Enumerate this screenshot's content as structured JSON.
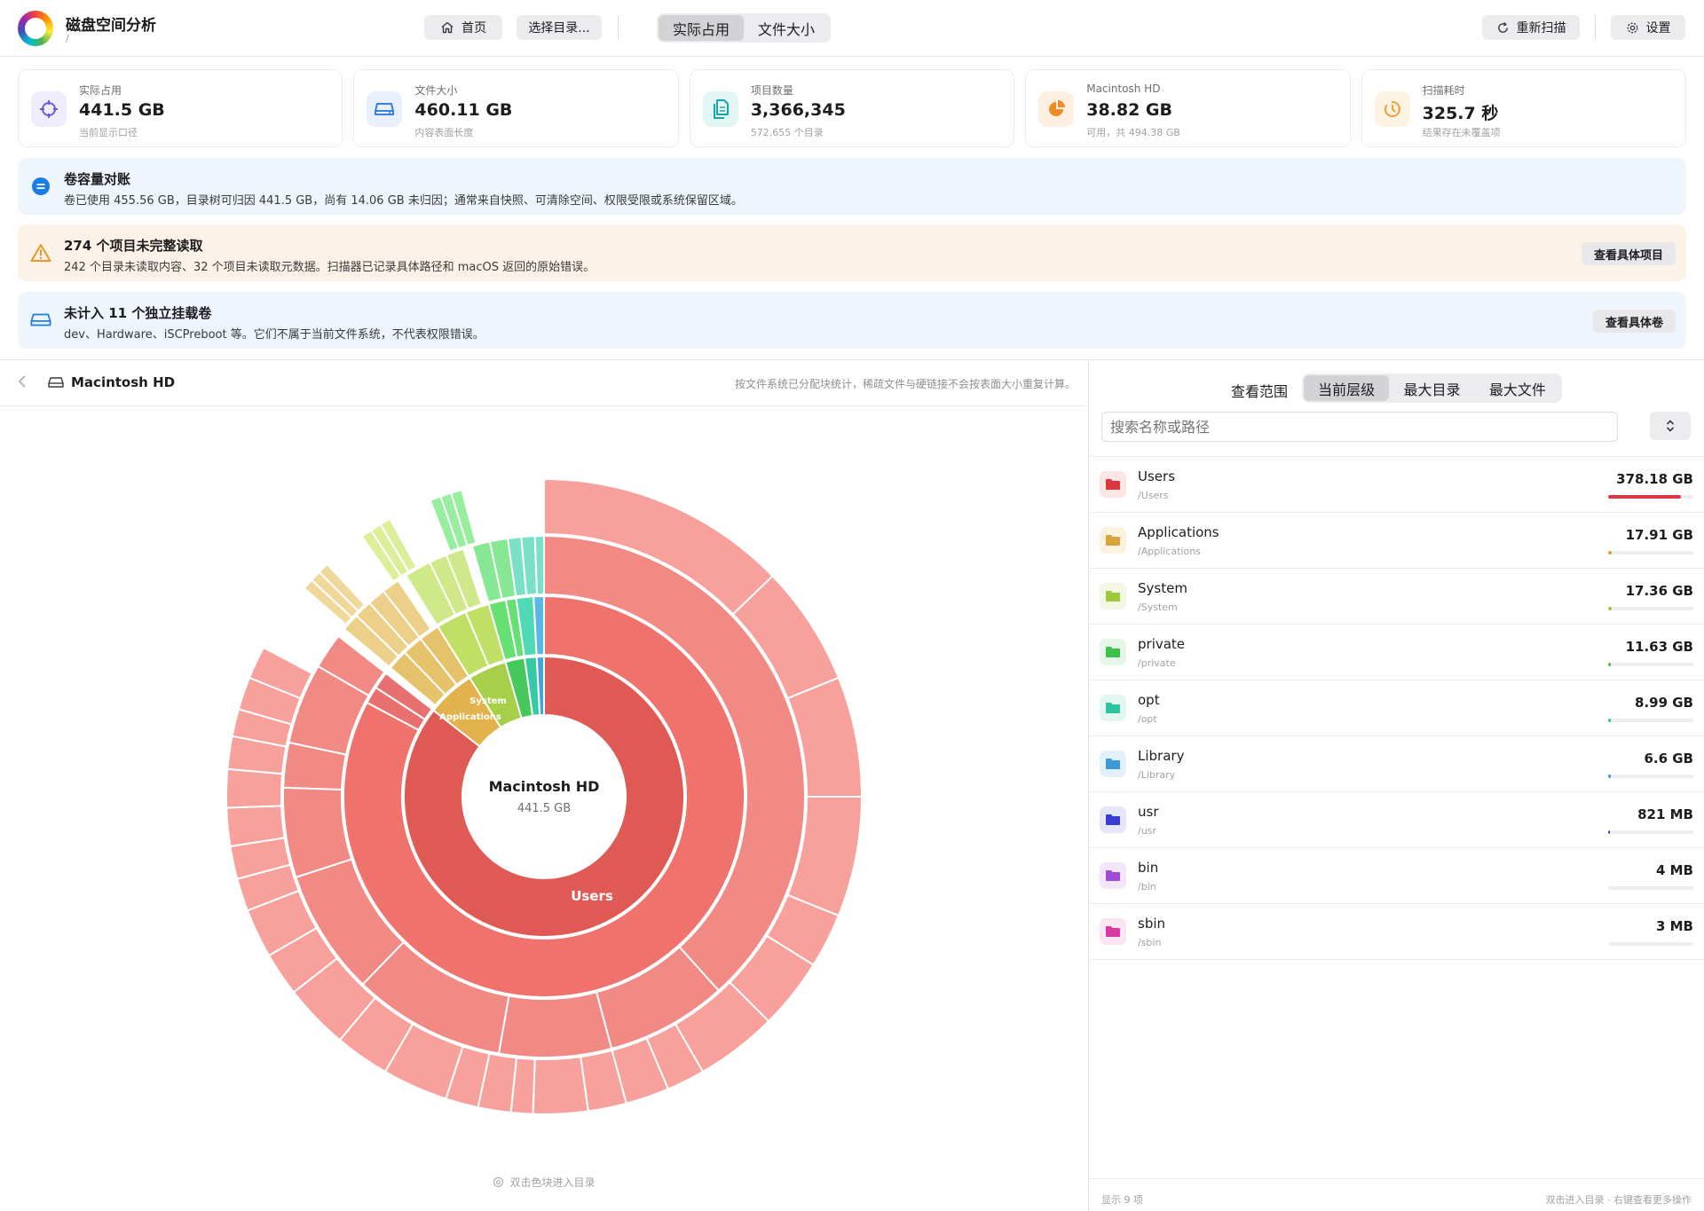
{
  "app": {
    "title": "磁盘空间分析",
    "path": "/"
  },
  "toolbar": {
    "home_label": "首页",
    "choose_dir_label": "选择目录...",
    "view_modes": [
      "实际占用",
      "文件大小"
    ],
    "rescan_label": "重新扫描",
    "settings_label": "设置"
  },
  "stats": [
    {
      "label": "实际占用",
      "value": "441.5 GB",
      "sub": "当前显示口径",
      "icon": "crosshair-icon",
      "color": "#6b5bd6",
      "bg": "#efedfb"
    },
    {
      "label": "文件大小",
      "value": "460.11 GB",
      "sub": "内容表面长度",
      "icon": "drive-icon",
      "color": "#3b7de0",
      "bg": "#e7f0fc"
    },
    {
      "label": "项目数量",
      "value": "3,366,345",
      "sub": "572,655 个目录",
      "icon": "files-icon",
      "color": "#18a5a5",
      "bg": "#e3f6f6"
    },
    {
      "label": "Macintosh HD",
      "value": "38.82 GB",
      "sub": "可用，共 494.38 GB",
      "icon": "pie-icon",
      "color": "#f08a24",
      "bg": "#fdf0e3"
    },
    {
      "label": "扫描耗时",
      "value": "325.7 秒",
      "sub": "结果存在未覆盖项",
      "icon": "timer-icon",
      "color": "#f0a030",
      "bg": "#fdf3e3"
    }
  ],
  "banners": {
    "volume": {
      "title": "卷容量对账",
      "text": "卷已使用 455.56 GB，目录树可归因 441.5 GB，尚有 14.06 GB 未归因；通常来自快照、可清除空间、权限受限或系统保留区域。",
      "bg": "#eef5fd"
    },
    "incomplete": {
      "title": "274 个项目未完整读取",
      "text": "242 个目录未读取内容、32 个项目未读取元数据。扫描器已记录具体路径和 macOS 返回的原始错误。",
      "button": "查看具体项目",
      "bg": "#fdf2e7"
    },
    "mounts": {
      "title": "未计入 11 个独立挂载卷",
      "text": "dev、Hardware、iSCPreboot 等。它们不属于当前文件系统，不代表权限错误。",
      "button": "查看具体卷",
      "bg": "#eef5fd"
    }
  },
  "breadcrumb": {
    "drive": "Macintosh HD",
    "note": "按文件系统已分配块统计，稀疏文件与硬链接不会按表面大小重复计算。"
  },
  "sunburst": {
    "center_title": "Macintosh HD",
    "center_value": "441.5 GB",
    "labels": {
      "users": "Users",
      "system": "System",
      "applications": "Applications"
    }
  },
  "hint": "双击色块进入目录",
  "right": {
    "scope_label": "查看范围",
    "scope_tabs": [
      "当前层级",
      "最大目录",
      "最大文件"
    ],
    "search_placeholder": "搜索名称或路径",
    "items": [
      {
        "name": "Users",
        "path": "/Users",
        "size": "378.18 GB",
        "fraction": 0.857,
        "color": "#d9393d",
        "bg": "#fbe5e5"
      },
      {
        "name": "Applications",
        "path": "/Applications",
        "size": "17.91 GB",
        "fraction": 0.041,
        "color": "#d9a43c",
        "bg": "#fbf2e0"
      },
      {
        "name": "System",
        "path": "/System",
        "size": "17.36 GB",
        "fraction": 0.039,
        "color": "#9cc93a",
        "bg": "#f2f8e3"
      },
      {
        "name": "private",
        "path": "/private",
        "size": "11.63 GB",
        "fraction": 0.026,
        "color": "#3fc04a",
        "bg": "#e5f7e6"
      },
      {
        "name": "opt",
        "path": "/opt",
        "size": "8.99 GB",
        "fraction": 0.02,
        "color": "#2fc4a0",
        "bg": "#e2f7f1"
      },
      {
        "name": "Library",
        "path": "/Library",
        "size": "6.6 GB",
        "fraction": 0.015,
        "color": "#3b9ad6",
        "bg": "#e3f1fa"
      },
      {
        "name": "usr",
        "path": "/usr",
        "size": "821 MB",
        "fraction": 0.002,
        "color": "#3a3ed0",
        "bg": "#e6e6fa"
      },
      {
        "name": "bin",
        "path": "/bin",
        "size": "4 MB",
        "fraction": 0.0,
        "color": "#a04ad6",
        "bg": "#f3e6fa"
      },
      {
        "name": "sbin",
        "path": "/sbin",
        "size": "3 MB",
        "fraction": 0.0,
        "color": "#d63aa0",
        "bg": "#fae5f2"
      }
    ],
    "footer_left": "显示 9 项",
    "footer_right": "双击进入目录 · 右键查看更多操作"
  }
}
